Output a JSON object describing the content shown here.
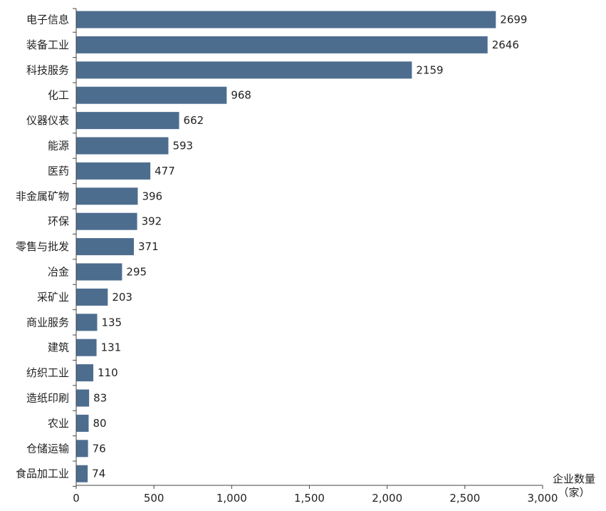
{
  "chart_data": {
    "type": "bar",
    "orientation": "horizontal",
    "categories": [
      "电子信息",
      "装备工业",
      "科技服务",
      "化工",
      "仪器仪表",
      "能源",
      "医药",
      "非金属矿物",
      "环保",
      "零售与批发",
      "冶金",
      "采矿业",
      "商业服务",
      "建筑",
      "纺织工业",
      "造纸印刷",
      "农业",
      "仓储运输",
      "食品加工业"
    ],
    "values": [
      2699,
      2646,
      2159,
      968,
      662,
      593,
      477,
      396,
      392,
      371,
      295,
      203,
      135,
      131,
      110,
      83,
      80,
      76,
      74
    ],
    "value_labels": [
      "2699",
      "2646",
      "2159",
      "968",
      "662",
      "593",
      "477",
      "396",
      "392",
      "371",
      "295",
      "203",
      "135",
      "131",
      "110",
      "83",
      "80",
      "76",
      "74"
    ],
    "xlim": [
      0,
      3000
    ],
    "xticks": [
      0,
      500,
      1000,
      1500,
      2000,
      2500,
      3000
    ],
    "xtick_labels": [
      "0",
      "500",
      "1,000",
      "1,500",
      "2,000",
      "2,500",
      "3,000"
    ],
    "xlabel_line1": "企业数量",
    "xlabel_line2": "（家）",
    "bar_color": "#4d6d8f",
    "grid": false
  }
}
